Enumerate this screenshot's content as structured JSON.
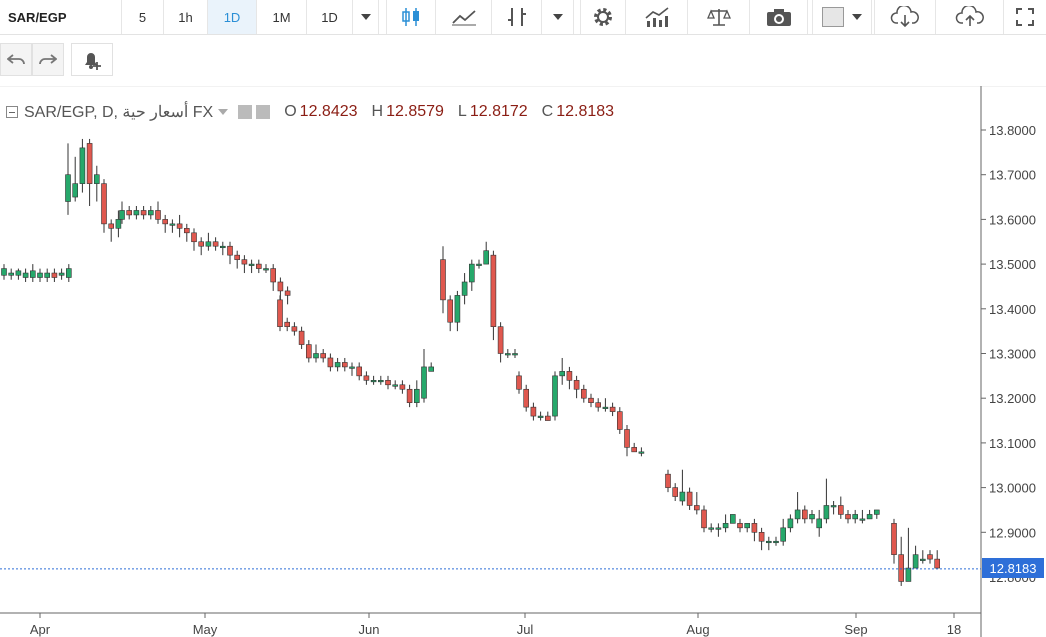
{
  "toolbar": {
    "symbol": "SAR/EGP",
    "intervals": [
      "5",
      "1h",
      "1D",
      "1M",
      "1D"
    ],
    "active_interval": "1D"
  },
  "legend": {
    "symbol_line": "SAR/EGP, D, أسعار حية FX",
    "o_label": "O",
    "o_value": "12.8423",
    "h_label": "H",
    "h_value": "12.8579",
    "l_label": "L",
    "l_value": "12.8172",
    "c_label": "C",
    "c_value": "12.8183"
  },
  "last_price_label": "12.8183",
  "colors": {
    "up": "#26a86b",
    "down": "#e0584f",
    "price_line": "#2e6fd8",
    "grid_axis": "#555555"
  },
  "chart_data": {
    "type": "candlestick",
    "y_ticks": [
      "13.8000",
      "13.7000",
      "13.6000",
      "13.5000",
      "13.4000",
      "13.3000",
      "13.2000",
      "13.1000",
      "13.0000",
      "12.9000",
      "12.8183"
    ],
    "ylim": [
      12.76,
      13.84
    ],
    "x_ticks": [
      "Apr",
      "May",
      "Jun",
      "Jul",
      "Aug",
      "Sep",
      "18"
    ],
    "candles": [
      [
        13.475,
        13.49,
        13.5,
        13.465
      ],
      [
        13.475,
        13.48,
        13.49,
        13.465
      ],
      [
        13.475,
        13.485,
        13.49,
        13.465
      ],
      [
        13.47,
        13.48,
        13.49,
        13.46
      ],
      [
        13.47,
        13.485,
        13.5,
        13.46
      ],
      [
        13.47,
        13.48,
        13.49,
        13.46
      ],
      [
        13.47,
        13.48,
        13.49,
        13.46
      ],
      [
        13.48,
        13.47,
        13.49,
        13.46
      ],
      [
        13.475,
        13.48,
        13.49,
        13.465
      ],
      [
        13.47,
        13.49,
        13.5,
        13.46
      ],
      [
        13.64,
        13.7,
        13.77,
        13.61
      ],
      [
        13.65,
        13.68,
        13.74,
        13.64
      ],
      [
        13.68,
        13.76,
        13.78,
        13.66
      ],
      [
        13.77,
        13.68,
        13.78,
        13.63
      ],
      [
        13.68,
        13.7,
        13.72,
        13.64
      ],
      [
        13.68,
        13.59,
        13.69,
        13.57
      ],
      [
        13.59,
        13.58,
        13.6,
        13.55
      ],
      [
        13.58,
        13.6,
        13.62,
        13.56
      ],
      [
        13.6,
        13.62,
        13.64,
        13.59
      ],
      [
        13.62,
        13.61,
        13.63,
        13.6
      ],
      [
        13.61,
        13.62,
        13.63,
        13.6
      ],
      [
        13.62,
        13.61,
        13.63,
        13.6
      ],
      [
        13.61,
        13.62,
        13.63,
        13.6
      ],
      [
        13.62,
        13.6,
        13.64,
        13.59
      ],
      [
        13.6,
        13.59,
        13.61,
        13.57
      ],
      [
        13.59,
        13.59,
        13.6,
        13.57
      ],
      [
        13.59,
        13.58,
        13.61,
        13.56
      ],
      [
        13.58,
        13.57,
        13.59,
        13.55
      ],
      [
        13.57,
        13.55,
        13.58,
        13.53
      ],
      [
        13.55,
        13.54,
        13.56,
        13.52
      ],
      [
        13.54,
        13.55,
        13.57,
        13.53
      ],
      [
        13.55,
        13.54,
        13.56,
        13.53
      ],
      [
        13.54,
        13.54,
        13.55,
        13.52
      ],
      [
        13.54,
        13.52,
        13.55,
        13.5
      ],
      [
        13.52,
        13.51,
        13.53,
        13.49
      ],
      [
        13.51,
        13.5,
        13.52,
        13.48
      ],
      [
        13.5,
        13.5,
        13.51,
        13.48
      ],
      [
        13.5,
        13.49,
        13.51,
        13.48
      ],
      [
        13.49,
        13.49,
        13.5,
        13.48
      ],
      [
        13.49,
        13.46,
        13.5,
        13.44
      ],
      [
        13.46,
        13.44,
        13.47,
        13.42
      ],
      [
        13.44,
        13.43,
        13.45,
        13.41
      ],
      [
        13.42,
        13.36,
        13.43,
        13.35
      ],
      [
        13.37,
        13.36,
        13.38,
        13.35
      ],
      [
        13.36,
        13.35,
        13.37,
        13.34
      ],
      [
        13.35,
        13.32,
        13.36,
        13.31
      ],
      [
        13.32,
        13.29,
        13.33,
        13.28
      ],
      [
        13.29,
        13.3,
        13.32,
        13.28
      ],
      [
        13.3,
        13.29,
        13.31,
        13.28
      ],
      [
        13.29,
        13.27,
        13.3,
        13.26
      ],
      [
        13.27,
        13.28,
        13.29,
        13.26
      ],
      [
        13.28,
        13.27,
        13.29,
        13.26
      ],
      [
        13.27,
        13.27,
        13.28,
        13.25
      ],
      [
        13.27,
        13.25,
        13.28,
        13.24
      ],
      [
        13.25,
        13.24,
        13.26,
        13.23
      ],
      [
        13.24,
        13.24,
        13.25,
        13.23
      ],
      [
        13.24,
        13.24,
        13.25,
        13.23
      ],
      [
        13.24,
        13.23,
        13.25,
        13.22
      ],
      [
        13.23,
        13.23,
        13.24,
        13.22
      ],
      [
        13.23,
        13.22,
        13.24,
        13.21
      ],
      [
        13.22,
        13.19,
        13.23,
        13.18
      ],
      [
        13.19,
        13.22,
        13.24,
        13.18
      ],
      [
        13.2,
        13.27,
        13.31,
        13.19
      ],
      [
        13.26,
        13.27,
        13.28,
        13.26
      ],
      [
        13.51,
        13.42,
        13.54,
        13.39
      ],
      [
        13.42,
        13.37,
        13.43,
        13.35
      ],
      [
        13.37,
        13.43,
        13.44,
        13.35
      ],
      [
        13.43,
        13.46,
        13.48,
        13.41
      ],
      [
        13.46,
        13.5,
        13.51,
        13.44
      ],
      [
        13.5,
        13.5,
        13.51,
        13.49
      ],
      [
        13.5,
        13.53,
        13.55,
        13.5
      ],
      [
        13.52,
        13.36,
        13.53,
        13.33
      ],
      [
        13.36,
        13.3,
        13.37,
        13.28
      ],
      [
        13.3,
        13.3,
        13.31,
        13.29
      ],
      [
        13.3,
        13.3,
        13.31,
        13.29
      ],
      [
        13.25,
        13.22,
        13.26,
        13.21
      ],
      [
        13.22,
        13.18,
        13.23,
        13.17
      ],
      [
        13.18,
        13.16,
        13.19,
        13.15
      ],
      [
        13.16,
        13.16,
        13.17,
        13.15
      ],
      [
        13.16,
        13.15,
        13.17,
        13.15
      ],
      [
        13.16,
        13.25,
        13.26,
        13.15
      ],
      [
        13.25,
        13.26,
        13.29,
        13.23
      ],
      [
        13.26,
        13.24,
        13.27,
        13.22
      ],
      [
        13.24,
        13.22,
        13.25,
        13.2
      ],
      [
        13.22,
        13.2,
        13.23,
        13.19
      ],
      [
        13.2,
        13.19,
        13.21,
        13.18
      ],
      [
        13.19,
        13.18,
        13.2,
        13.17
      ],
      [
        13.18,
        13.18,
        13.2,
        13.17
      ],
      [
        13.18,
        13.17,
        13.19,
        13.16
      ],
      [
        13.17,
        13.13,
        13.18,
        13.12
      ],
      [
        13.13,
        13.09,
        13.14,
        13.07
      ],
      [
        13.09,
        13.08,
        13.1,
        13.08
      ],
      [
        13.08,
        13.08,
        13.09,
        13.07
      ],
      [
        13.03,
        13.0,
        13.04,
        12.99
      ],
      [
        13.0,
        12.98,
        13.01,
        12.97
      ],
      [
        12.97,
        12.99,
        13.04,
        12.96
      ],
      [
        12.99,
        12.96,
        13.0,
        12.95
      ],
      [
        12.96,
        12.95,
        12.99,
        12.94
      ],
      [
        12.95,
        12.91,
        12.96,
        12.9
      ],
      [
        12.91,
        12.91,
        12.92,
        12.9
      ],
      [
        12.91,
        12.91,
        12.92,
        12.89
      ],
      [
        12.91,
        12.92,
        12.94,
        12.9
      ],
      [
        12.92,
        12.94,
        12.94,
        12.92
      ],
      [
        12.92,
        12.91,
        12.93,
        12.9
      ],
      [
        12.91,
        12.92,
        12.92,
        12.9
      ],
      [
        12.92,
        12.9,
        12.93,
        12.88
      ],
      [
        12.9,
        12.88,
        12.91,
        12.86
      ],
      [
        12.88,
        12.88,
        12.89,
        12.86
      ],
      [
        12.88,
        12.88,
        12.89,
        12.87
      ],
      [
        12.88,
        12.91,
        12.93,
        12.87
      ],
      [
        12.91,
        12.93,
        12.94,
        12.9
      ],
      [
        12.93,
        12.95,
        12.99,
        12.92
      ],
      [
        12.95,
        12.93,
        12.96,
        12.92
      ],
      [
        12.93,
        12.94,
        12.95,
        12.92
      ],
      [
        12.91,
        12.93,
        12.95,
        12.89
      ],
      [
        12.93,
        12.96,
        13.02,
        12.92
      ],
      [
        12.96,
        12.96,
        12.97,
        12.94
      ],
      [
        12.96,
        12.94,
        12.98,
        12.93
      ],
      [
        12.94,
        12.93,
        12.95,
        12.92
      ],
      [
        12.93,
        12.94,
        12.95,
        12.92
      ],
      [
        12.93,
        12.93,
        12.95,
        12.92
      ],
      [
        12.93,
        12.94,
        12.95,
        12.93
      ],
      [
        12.94,
        12.95,
        12.95,
        12.93
      ],
      [
        12.92,
        12.85,
        12.93,
        12.83
      ],
      [
        12.85,
        12.79,
        12.89,
        12.78
      ],
      [
        12.79,
        12.82,
        12.91,
        12.79
      ],
      [
        12.82,
        12.85,
        12.87,
        12.83
      ],
      [
        12.84,
        12.84,
        12.86,
        12.83
      ],
      [
        12.85,
        12.84,
        12.86,
        12.83
      ],
      [
        12.84,
        12.82,
        12.86,
        12.82
      ]
    ]
  }
}
